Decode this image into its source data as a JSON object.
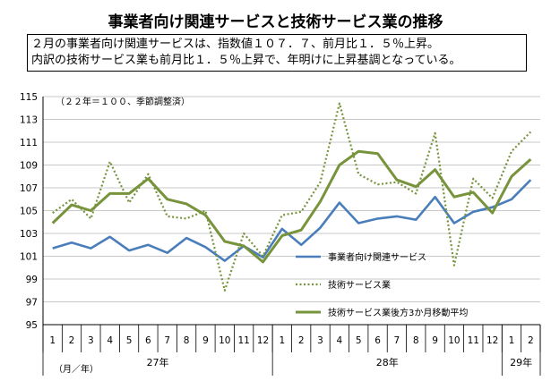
{
  "title": "事業者向け関連サービスと技術サービス業の推移",
  "note_lines": [
    "２月の事業者向け関連サービスは、指数値１０７．７、前月比１．５％上昇。",
    "内訳の技術サービス業も前月比１．５％上昇で、年明けに上昇基調となっている。"
  ],
  "chart_data": {
    "type": "line",
    "subtitle": "（２２年＝１００、季節調整済）",
    "xlabel": "（月／年）",
    "categories": [
      "1",
      "2",
      "3",
      "4",
      "5",
      "6",
      "7",
      "8",
      "9",
      "10",
      "11",
      "12",
      "1",
      "2",
      "3",
      "4",
      "5",
      "6",
      "7",
      "8",
      "9",
      "10",
      "11",
      "12",
      "1",
      "2"
    ],
    "year_labels": [
      {
        "label": "27年",
        "start": 0,
        "end": 11
      },
      {
        "label": "28年",
        "start": 12,
        "end": 23
      },
      {
        "label": "29年",
        "start": 24,
        "end": 25
      }
    ],
    "ylim": [
      95,
      115
    ],
    "yticks": [
      95,
      97,
      99,
      101,
      103,
      105,
      107,
      109,
      111,
      113,
      115
    ],
    "grid": true,
    "legend_position": "right-middle",
    "series": [
      {
        "name": "事業者向け関連サービス",
        "color": "#4a7ebb",
        "style": "solid",
        "values": [
          101.7,
          102.2,
          101.7,
          102.7,
          101.5,
          102.0,
          101.3,
          102.6,
          101.8,
          100.6,
          101.9,
          100.9,
          103.4,
          102.0,
          103.5,
          105.7,
          103.9,
          104.3,
          104.5,
          104.2,
          106.2,
          103.9,
          104.9,
          105.3,
          106.0,
          107.7
        ]
      },
      {
        "name": "技術サービス業",
        "color": "#77933c",
        "style": "dotted",
        "values": [
          104.8,
          106.0,
          104.3,
          109.3,
          105.7,
          108.2,
          104.5,
          104.3,
          105.0,
          98.0,
          103.0,
          101.0,
          104.6,
          104.9,
          107.5,
          114.4,
          108.2,
          107.3,
          107.5,
          106.5,
          111.8,
          100.2,
          107.8,
          106.1,
          110.2,
          111.9
        ]
      },
      {
        "name": "技術サービス業後方3か月移動平均",
        "color": "#77933c",
        "style": "thick",
        "values": [
          103.9,
          105.5,
          105.0,
          106.5,
          106.5,
          107.8,
          106.0,
          105.6,
          104.6,
          102.3,
          101.9,
          100.5,
          102.8,
          103.3,
          105.8,
          109.0,
          110.2,
          110.0,
          107.7,
          107.1,
          108.6,
          106.2,
          106.6,
          104.8,
          108.0,
          109.5
        ]
      }
    ]
  }
}
